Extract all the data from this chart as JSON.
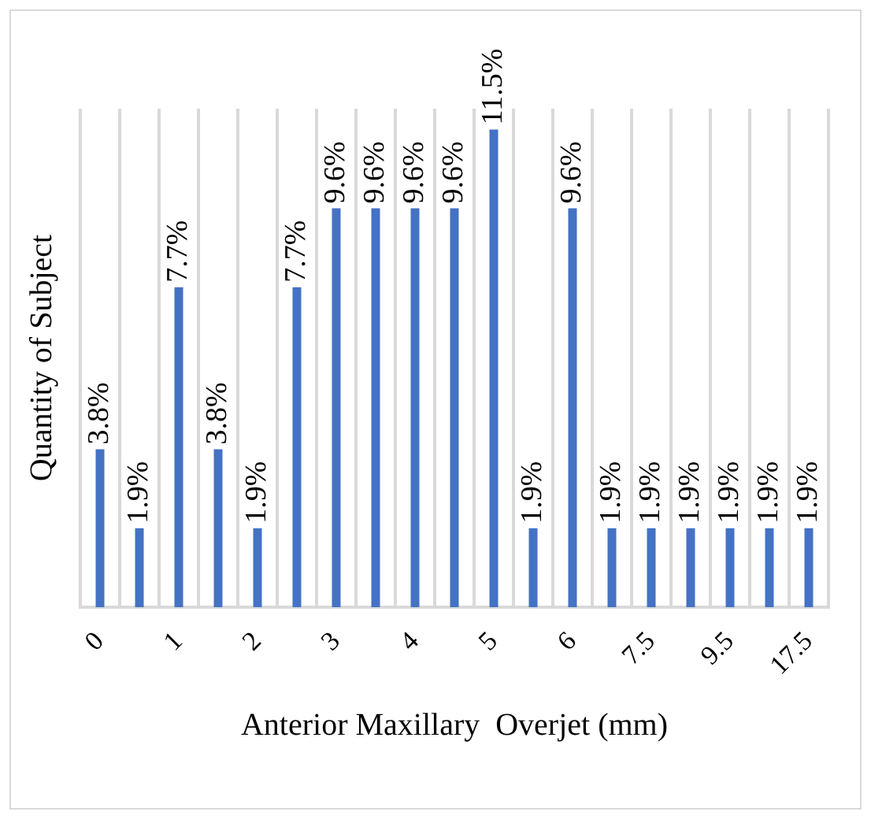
{
  "chart_data": {
    "type": "bar",
    "xlabel": "Anterior Maxillary  Overjet (mm)",
    "ylabel": "Quantity of Subject",
    "categories": [
      "0",
      null,
      "1",
      null,
      "2",
      null,
      "3",
      null,
      "4",
      null,
      "5",
      null,
      "6",
      null,
      "7.5",
      null,
      "9.5",
      null,
      "17.5"
    ],
    "values": [
      3.8,
      1.9,
      7.7,
      3.8,
      1.9,
      7.7,
      9.6,
      9.6,
      9.6,
      9.6,
      11.5,
      1.9,
      9.6,
      1.9,
      1.9,
      1.9,
      1.9,
      1.9,
      1.9
    ],
    "value_labels": [
      "3.8%",
      "1.9%",
      "7.7%",
      "3.8%",
      "1.9%",
      "7.7%",
      "9.6%",
      "9.6%",
      "9.6%",
      "9.6%",
      "11.5%",
      "1.9%",
      "9.6%",
      "1.9%",
      "1.9%",
      "1.9%",
      "1.9%",
      "1.9%",
      "1.9%"
    ],
    "color": "#4472c4",
    "grid": "x",
    "legend": false,
    "tick_labels": "x"
  }
}
